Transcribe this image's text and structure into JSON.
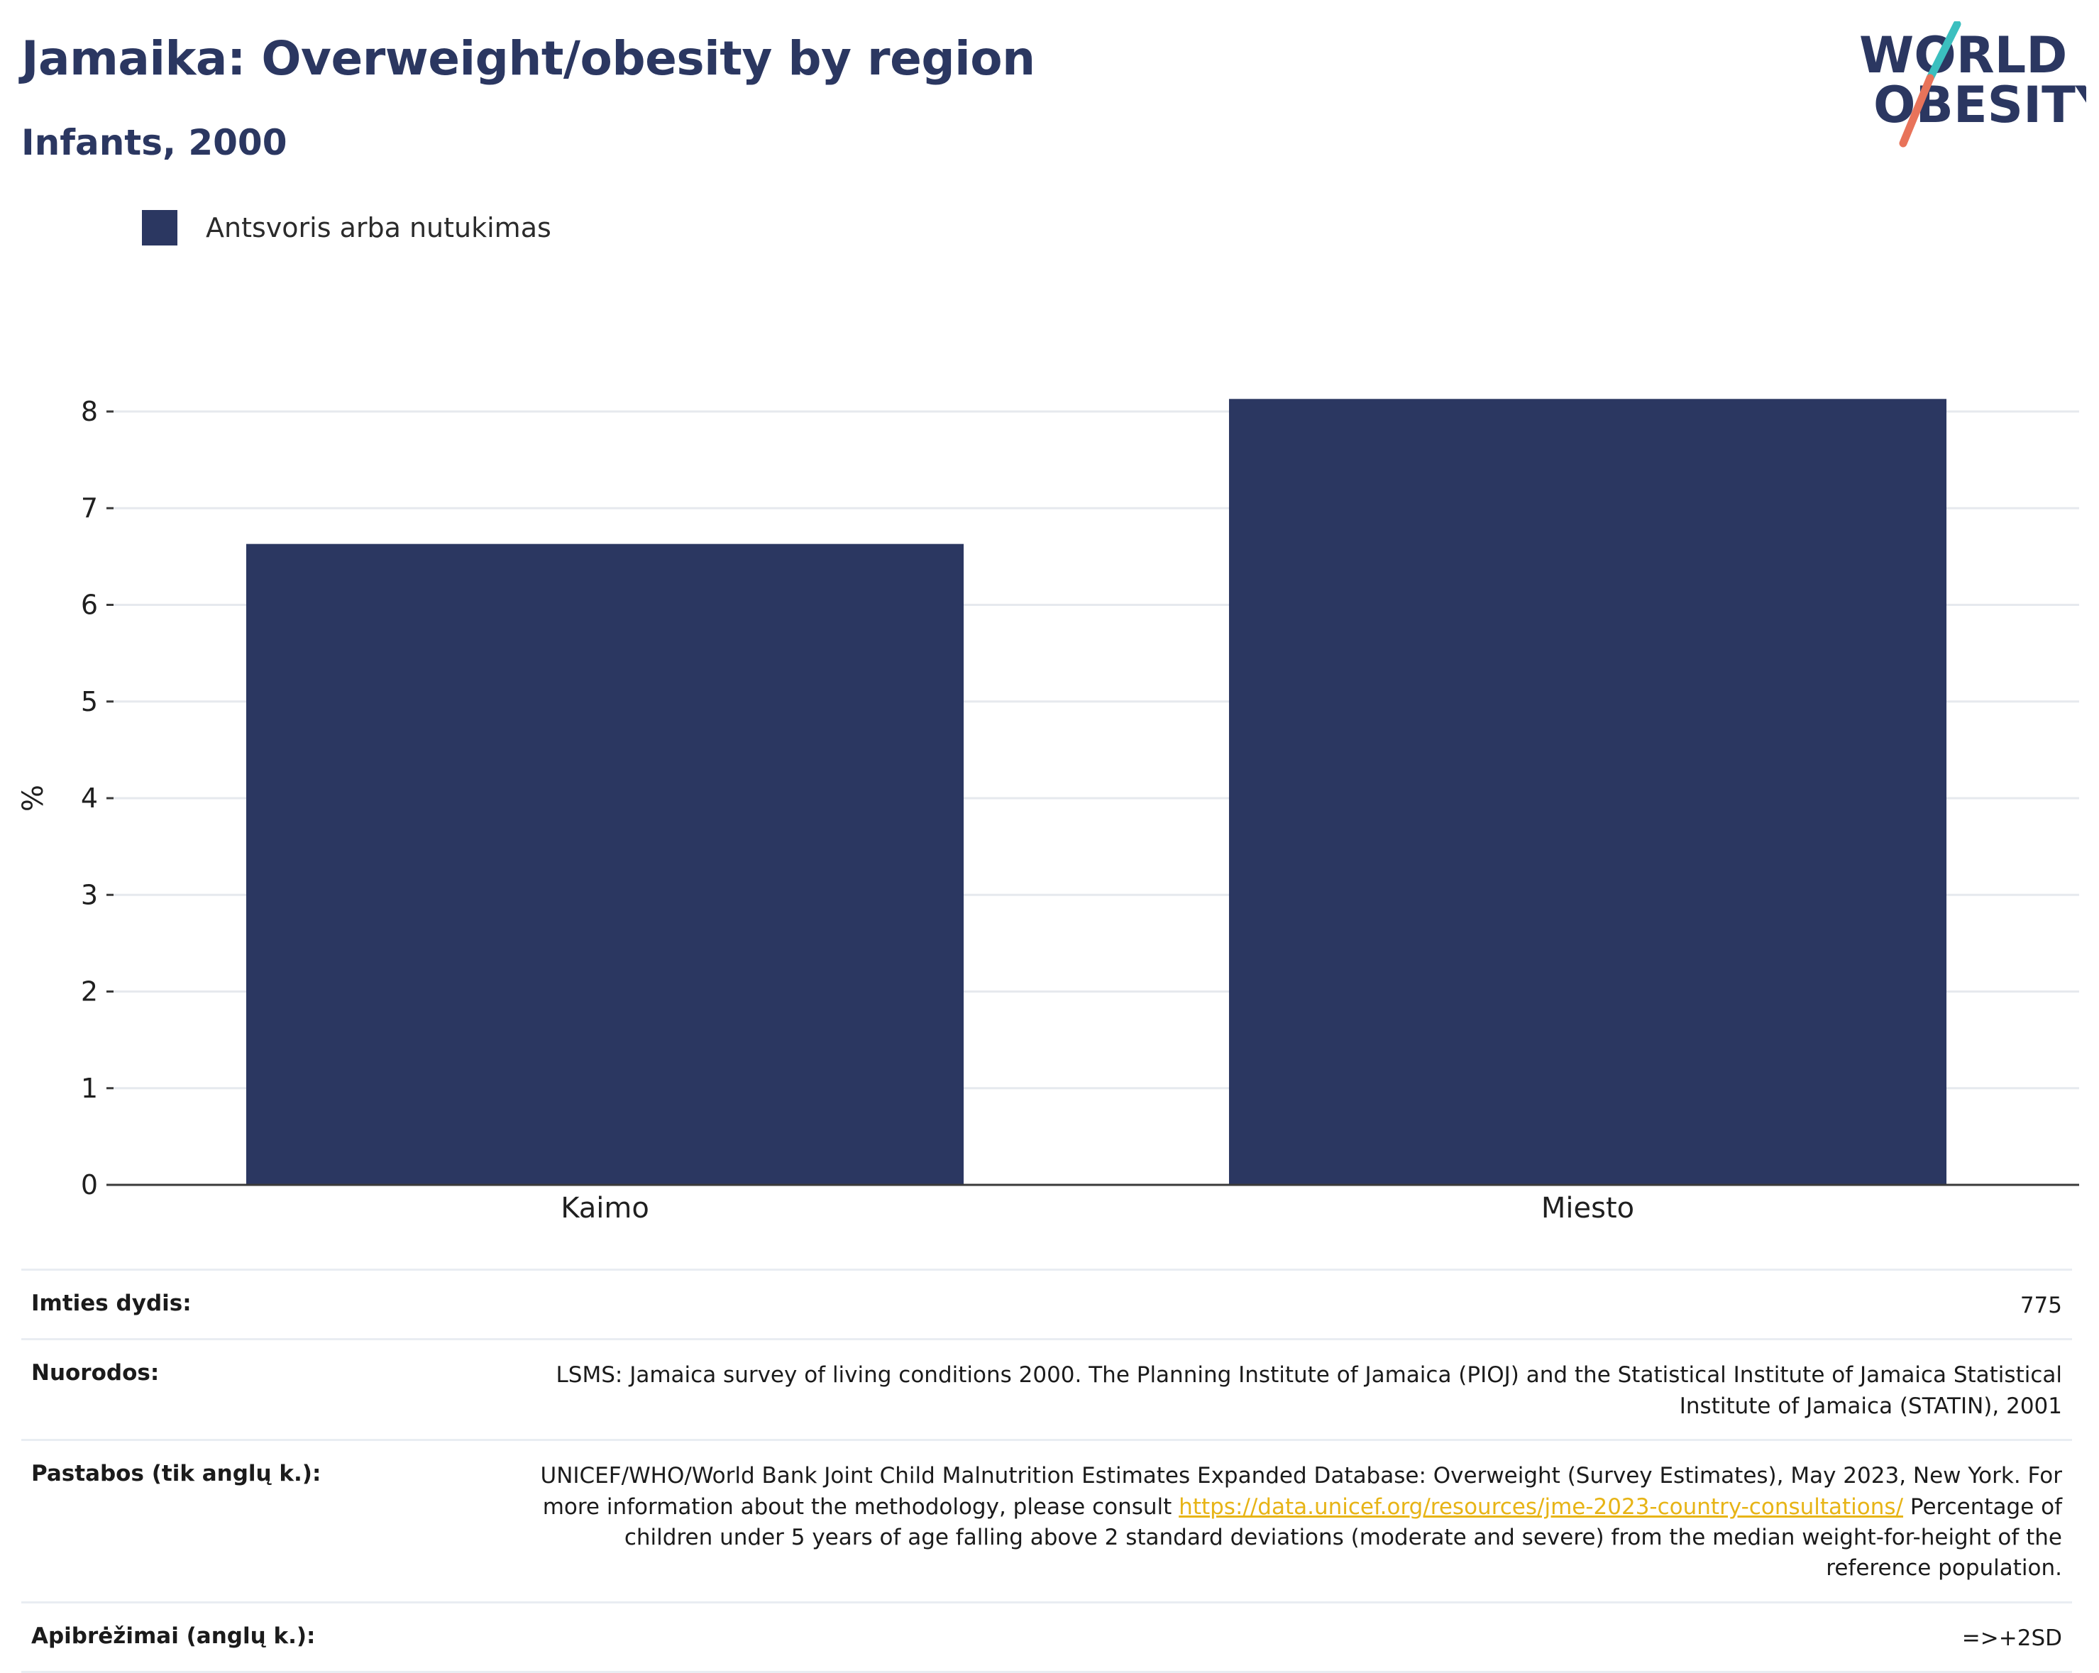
{
  "header": {
    "title": "Jamaika: Overweight/obesity by region",
    "subtitle": "Infants, 2000"
  },
  "logo": {
    "line1": "WORLD",
    "line2": "OBESITY",
    "colors": {
      "navy": "#2b3761",
      "teal": "#3bbfbf",
      "coral": "#e8735a"
    }
  },
  "legend": {
    "label": "Antsvoris arba nutukimas",
    "color": "#2b3761"
  },
  "chart_data": {
    "type": "bar",
    "categories": [
      "Kaimo",
      "Miesto"
    ],
    "series": [
      {
        "name": "Antsvoris arba nutukimas",
        "values": [
          6.63,
          8.13
        ],
        "color": "#2b3761"
      }
    ],
    "title": "Jamaika: Overweight/obesity by region",
    "subtitle": "Infants, 2000",
    "xlabel": "",
    "ylabel": "%",
    "ylim": [
      0,
      8
    ],
    "yticks": [
      0,
      1,
      2,
      3,
      4,
      5,
      6,
      7,
      8
    ],
    "grid": true,
    "legend_position": "top-left"
  },
  "info": {
    "sample": {
      "label": "Imties dydis:",
      "value": "775"
    },
    "references": {
      "label": "Nuorodos:",
      "value": "LSMS: Jamaica survey of living conditions 2000. The Planning Institute of Jamaica (PIOJ) and the Statistical Institute of Jamaica Statistical Institute of Jamaica (STATIN), 2001"
    },
    "notes": {
      "label": "Pastabos (tik anglų k.):",
      "text_before": "UNICEF/WHO/World Bank Joint Child Malnutrition Estimates Expanded Database: Overweight (Survey Estimates), May 2023, New York. For more information about the methodology, please consult",
      "link": "https://data.unicef.org/resources/jme-2023-country-consultations/",
      "text_after": "Percentage of children under 5 years of age falling above 2 standard deviations (moderate and severe) from the median weight-for-height of the reference population."
    },
    "definitions": {
      "label": "Apibrėžimai (anglų k.):",
      "value": "=>+2SD"
    }
  }
}
